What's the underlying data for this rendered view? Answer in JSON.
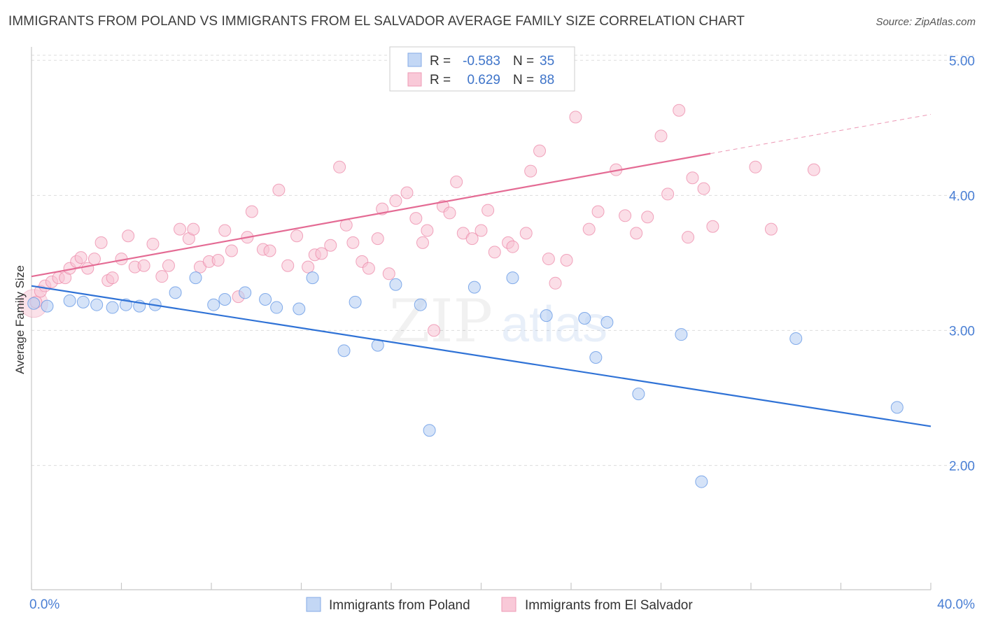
{
  "title": "IMMIGRANTS FROM POLAND VS IMMIGRANTS FROM EL SALVADOR AVERAGE FAMILY SIZE CORRELATION CHART",
  "source": "Source: ZipAtlas.com",
  "watermark": {
    "zip": "ZIP",
    "atlas": "atlas"
  },
  "legend": {
    "r_label": "R =",
    "n_label": "N =",
    "series": [
      {
        "r": "-0.583",
        "n": "35"
      },
      {
        "r": "0.629",
        "n": "88"
      }
    ]
  },
  "chart_data": {
    "type": "scatter",
    "title": "IMMIGRANTS FROM POLAND VS IMMIGRANTS FROM EL SALVADOR AVERAGE FAMILY SIZE CORRELATION CHART",
    "xlabel": "",
    "ylabel": "Average Family Size",
    "x_tick_labels": [
      "0.0%",
      "40.0%"
    ],
    "y_tick_labels": [
      "2.00",
      "3.00",
      "4.00",
      "5.00"
    ],
    "y_ticks": [
      2.0,
      3.0,
      4.0,
      5.0
    ],
    "xlim": [
      0,
      40
    ],
    "ylim": [
      1.08,
      5.1
    ],
    "grid": "horizontal dashed",
    "colors": {
      "poland": "#6d9ee6",
      "poland_fill": "#b9d0f4",
      "elsalvador": "#ec88a8",
      "elsalvador_fill": "#f7c3d3",
      "poland_line": "#2f72d6",
      "elsalvador_line": "#e46b94"
    },
    "series": [
      {
        "name": "Immigrants from Poland",
        "points": [
          [
            0.1,
            3.2
          ],
          [
            0.7,
            3.18
          ],
          [
            1.7,
            3.22
          ],
          [
            2.3,
            3.21
          ],
          [
            2.9,
            3.19
          ],
          [
            3.6,
            3.17
          ],
          [
            4.2,
            3.19
          ],
          [
            4.8,
            3.18
          ],
          [
            5.5,
            3.19
          ],
          [
            6.4,
            3.28
          ],
          [
            7.3,
            3.39
          ],
          [
            8.1,
            3.19
          ],
          [
            8.6,
            3.23
          ],
          [
            9.5,
            3.28
          ],
          [
            10.4,
            3.23
          ],
          [
            10.9,
            3.17
          ],
          [
            11.9,
            3.16
          ],
          [
            12.5,
            3.39
          ],
          [
            13.9,
            2.85
          ],
          [
            14.4,
            3.21
          ],
          [
            15.4,
            2.89
          ],
          [
            16.2,
            3.34
          ],
          [
            17.3,
            3.19
          ],
          [
            17.7,
            2.26
          ],
          [
            19.7,
            3.32
          ],
          [
            21.4,
            3.39
          ],
          [
            22.9,
            3.11
          ],
          [
            24.6,
            3.09
          ],
          [
            25.1,
            2.8
          ],
          [
            25.6,
            3.06
          ],
          [
            27.0,
            2.53
          ],
          [
            28.9,
            2.97
          ],
          [
            29.8,
            1.88
          ],
          [
            34.0,
            2.94
          ],
          [
            38.5,
            2.43
          ]
        ],
        "trend": {
          "x": [
            0,
            40
          ],
          "y": [
            3.33,
            2.29
          ]
        }
      },
      {
        "name": "Immigrants from El Salvador",
        "points": [
          [
            0.2,
            3.21
          ],
          [
            0.4,
            3.29
          ],
          [
            0.6,
            3.33
          ],
          [
            0.9,
            3.36
          ],
          [
            1.2,
            3.39
          ],
          [
            1.5,
            3.39
          ],
          [
            1.7,
            3.46
          ],
          [
            2.0,
            3.51
          ],
          [
            2.2,
            3.54
          ],
          [
            2.5,
            3.46
          ],
          [
            2.8,
            3.53
          ],
          [
            3.1,
            3.65
          ],
          [
            3.4,
            3.37
          ],
          [
            3.6,
            3.39
          ],
          [
            4.0,
            3.53
          ],
          [
            4.3,
            3.7
          ],
          [
            4.6,
            3.47
          ],
          [
            5.0,
            3.48
          ],
          [
            5.4,
            3.64
          ],
          [
            5.8,
            3.4
          ],
          [
            6.1,
            3.48
          ],
          [
            6.6,
            3.75
          ],
          [
            7.0,
            3.68
          ],
          [
            7.2,
            3.75
          ],
          [
            7.5,
            3.47
          ],
          [
            7.9,
            3.51
          ],
          [
            8.3,
            3.52
          ],
          [
            8.6,
            3.74
          ],
          [
            8.9,
            3.59
          ],
          [
            9.2,
            3.25
          ],
          [
            9.6,
            3.69
          ],
          [
            9.8,
            3.88
          ],
          [
            10.3,
            3.6
          ],
          [
            10.6,
            3.59
          ],
          [
            11.0,
            4.04
          ],
          [
            11.4,
            3.48
          ],
          [
            11.8,
            3.7
          ],
          [
            12.3,
            3.47
          ],
          [
            12.6,
            3.56
          ],
          [
            12.9,
            3.57
          ],
          [
            13.3,
            3.63
          ],
          [
            13.7,
            4.21
          ],
          [
            14.0,
            3.78
          ],
          [
            14.3,
            3.65
          ],
          [
            14.7,
            3.51
          ],
          [
            15.0,
            3.46
          ],
          [
            15.4,
            3.68
          ],
          [
            15.6,
            3.9
          ],
          [
            15.9,
            3.42
          ],
          [
            16.2,
            3.96
          ],
          [
            16.7,
            4.02
          ],
          [
            17.1,
            3.83
          ],
          [
            17.4,
            3.65
          ],
          [
            17.6,
            3.74
          ],
          [
            17.9,
            3.0
          ],
          [
            18.3,
            3.92
          ],
          [
            18.6,
            3.87
          ],
          [
            18.9,
            4.1
          ],
          [
            19.2,
            3.72
          ],
          [
            19.6,
            3.68
          ],
          [
            20.0,
            3.74
          ],
          [
            20.3,
            3.89
          ],
          [
            20.6,
            3.58
          ],
          [
            21.2,
            3.65
          ],
          [
            21.4,
            3.62
          ],
          [
            22.0,
            3.72
          ],
          [
            22.2,
            4.18
          ],
          [
            22.6,
            4.33
          ],
          [
            23.0,
            3.53
          ],
          [
            23.3,
            3.35
          ],
          [
            23.8,
            3.52
          ],
          [
            24.2,
            4.58
          ],
          [
            24.8,
            3.75
          ],
          [
            25.2,
            3.88
          ],
          [
            26.0,
            4.19
          ],
          [
            26.4,
            3.85
          ],
          [
            26.9,
            3.72
          ],
          [
            27.4,
            3.84
          ],
          [
            28.0,
            4.44
          ],
          [
            28.3,
            4.01
          ],
          [
            28.8,
            4.63
          ],
          [
            29.2,
            3.69
          ],
          [
            29.4,
            4.13
          ],
          [
            29.9,
            4.05
          ],
          [
            30.3,
            3.77
          ],
          [
            32.2,
            4.21
          ],
          [
            32.9,
            3.75
          ],
          [
            34.8,
            4.19
          ]
        ],
        "trend": {
          "x": [
            0,
            30.2
          ],
          "y": [
            3.4,
            4.31
          ]
        },
        "trend_extension": {
          "x": [
            30.2,
            40
          ],
          "y": [
            4.31,
            4.6
          ]
        }
      }
    ]
  },
  "bottom_legend": [
    {
      "label": "Immigrants from Poland"
    },
    {
      "label": "Immigrants from El Salvador"
    }
  ]
}
